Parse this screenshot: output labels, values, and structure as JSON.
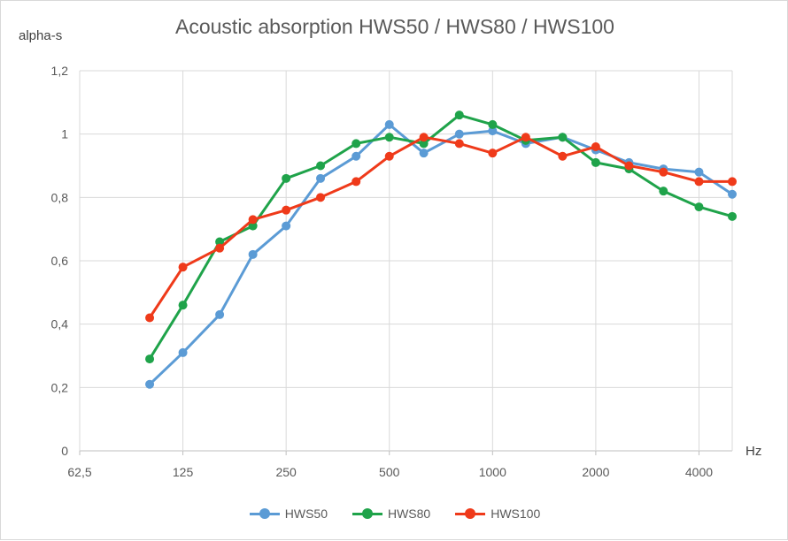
{
  "chart_data": {
    "type": "line",
    "title": "Acoustic absorption HWS50 / HWS80 / HWS100",
    "ylabel": "alpha-s",
    "xlabel": "Hz",
    "x_scale": "log2",
    "xlim": [
      62.5,
      5000
    ],
    "ylim": [
      0,
      1.2
    ],
    "x_tick_labels": [
      "62,5",
      "125",
      "250",
      "500",
      "1000",
      "2000",
      "4000"
    ],
    "x_tick_values": [
      62.5,
      125,
      250,
      500,
      1000,
      2000,
      4000
    ],
    "y_tick_labels": [
      "0",
      "0,2",
      "0,4",
      "0,6",
      "0,8",
      "1",
      "1,2"
    ],
    "y_tick_values": [
      0,
      0.2,
      0.4,
      0.6,
      0.8,
      1.0,
      1.2
    ],
    "grid": true,
    "legend_position": "bottom",
    "x": [
      100,
      125,
      160,
      200,
      250,
      315,
      400,
      500,
      630,
      800,
      1000,
      1250,
      1600,
      2000,
      2500,
      3150,
      4000,
      5000
    ],
    "series": [
      {
        "name": "HWS50",
        "color": "#5b9bd5",
        "values": [
          0.21,
          0.31,
          0.43,
          0.62,
          0.71,
          0.86,
          0.93,
          1.03,
          0.94,
          1.0,
          1.01,
          0.97,
          0.99,
          0.95,
          0.91,
          0.89,
          0.88,
          0.81
        ]
      },
      {
        "name": "HWS80",
        "color": "#1fa34a",
        "values": [
          0.29,
          0.46,
          0.66,
          0.71,
          0.86,
          0.9,
          0.97,
          0.99,
          0.97,
          1.06,
          1.03,
          0.98,
          0.99,
          0.91,
          0.89,
          0.82,
          0.77,
          0.74
        ]
      },
      {
        "name": "HWS100",
        "color": "#ef3a1a",
        "values": [
          0.42,
          0.58,
          0.64,
          0.73,
          0.76,
          0.8,
          0.85,
          0.93,
          0.99,
          0.97,
          0.94,
          0.99,
          0.93,
          0.96,
          0.9,
          0.88,
          0.85,
          0.85
        ]
      }
    ]
  }
}
